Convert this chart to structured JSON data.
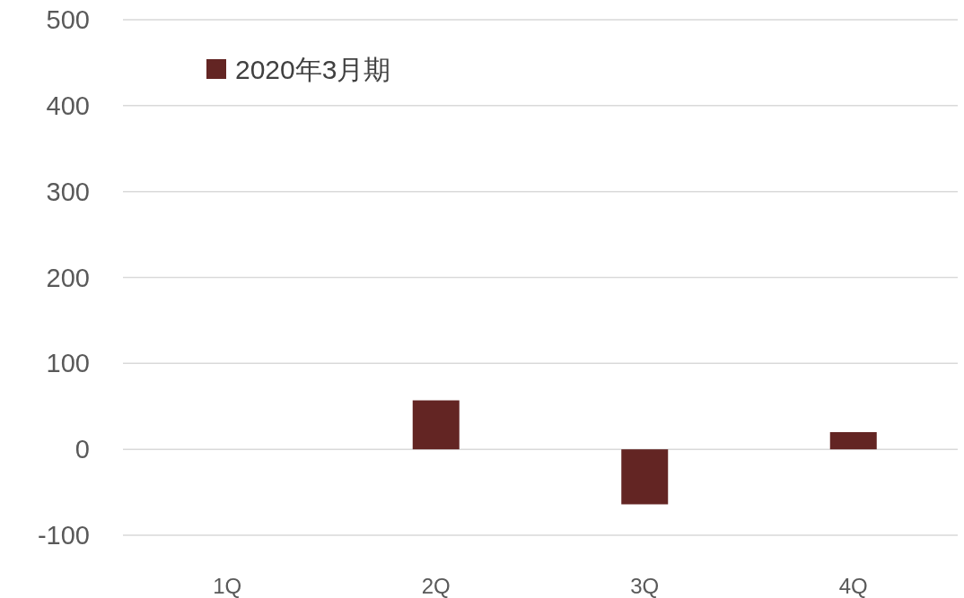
{
  "chart_data": {
    "type": "bar",
    "categories": [
      "1Q",
      "2Q",
      "3Q",
      "4Q"
    ],
    "series": [
      {
        "name": "2020年3月期",
        "color": "#632523",
        "values": [
          null,
          57,
          -64,
          20
        ]
      }
    ],
    "ylim": [
      -100,
      500
    ],
    "yticks": [
      -100,
      0,
      100,
      200,
      300,
      400,
      500
    ],
    "grid": "y",
    "legend": "top left"
  }
}
